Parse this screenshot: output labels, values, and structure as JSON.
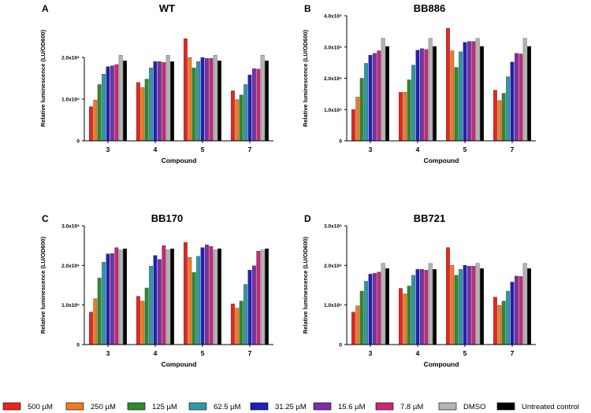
{
  "colors": {
    "500 µM": "#e8251f",
    "250 µM": "#f07a22",
    "125 µM": "#2f8a2f",
    "62.5 µM": "#2f9aa6",
    "31.25 µM": "#1f1fb8",
    "15.6 µM": "#7a2fa6",
    "7.8 µM": "#c8287a",
    "DMSO": "#b4b4b4",
    "Untreated control": "#000000"
  },
  "legend": [
    "500 µM",
    "250 µM",
    "125 µM",
    "62.5 µM",
    "31.25 µM",
    "15.6 µM",
    "7.8 µM",
    "DMSO",
    "Untreated control"
  ],
  "chart_data": [
    {
      "type": "bar",
      "panel": "A",
      "title": "WT",
      "xlabel": "Compound",
      "ylabel": "Relative luminescence (LU/OD600)",
      "ylim": [
        0,
        3000000
      ],
      "yticks": [
        0,
        1000000,
        2000000
      ],
      "ytick_labels": [
        "0",
        "1.0x10⁶",
        "2.0x10⁶"
      ],
      "categories": [
        "3",
        "4",
        "5",
        "7"
      ],
      "series": [
        {
          "name": "500 µM",
          "values": [
            820000,
            1400000,
            2450000,
            1200000
          ]
        },
        {
          "name": "250 µM",
          "values": [
            980000,
            1280000,
            2000000,
            990000
          ]
        },
        {
          "name": "125 µM",
          "values": [
            1350000,
            1480000,
            1750000,
            1100000
          ]
        },
        {
          "name": "62.5 µM",
          "values": [
            1600000,
            1750000,
            1900000,
            1350000
          ]
        },
        {
          "name": "31.25 µM",
          "values": [
            1780000,
            1900000,
            2000000,
            1580000
          ]
        },
        {
          "name": "15.6 µM",
          "values": [
            1800000,
            1900000,
            1980000,
            1730000
          ]
        },
        {
          "name": "7.8 µM",
          "values": [
            1830000,
            1880000,
            1980000,
            1720000
          ]
        },
        {
          "name": "DMSO",
          "values": [
            2050000,
            2050000,
            2050000,
            2050000
          ]
        },
        {
          "name": "Untreated control",
          "values": [
            1920000,
            1900000,
            1920000,
            1920000
          ]
        }
      ]
    },
    {
      "type": "bar",
      "panel": "B",
      "title": "BB886",
      "xlabel": "Compound",
      "ylabel": "Relative luminescence (LU/OD600)",
      "ylim": [
        0,
        4000000
      ],
      "yticks": [
        0,
        1000000,
        2000000,
        3000000,
        4000000
      ],
      "ytick_labels": [
        "0",
        "1.0x10⁶",
        "2.0x10⁶",
        "3.0x10⁶",
        "4.0x10⁶"
      ],
      "categories": [
        "3",
        "4",
        "5",
        "7"
      ],
      "series": [
        {
          "name": "500 µM",
          "values": [
            1000000,
            1550000,
            3600000,
            1620000
          ]
        },
        {
          "name": "250 µM",
          "values": [
            1400000,
            1560000,
            2880000,
            1290000
          ]
        },
        {
          "name": "125 µM",
          "values": [
            2000000,
            1950000,
            2350000,
            1520000
          ]
        },
        {
          "name": "62.5 µM",
          "values": [
            2480000,
            2420000,
            2850000,
            2050000
          ]
        },
        {
          "name": "31.25 µM",
          "values": [
            2740000,
            2900000,
            3150000,
            2520000
          ]
        },
        {
          "name": "15.6 µM",
          "values": [
            2800000,
            2950000,
            3180000,
            2800000
          ]
        },
        {
          "name": "7.8 µM",
          "values": [
            2880000,
            2920000,
            3180000,
            2780000
          ]
        },
        {
          "name": "DMSO",
          "values": [
            3280000,
            3280000,
            3280000,
            3280000
          ]
        },
        {
          "name": "Untreated control",
          "values": [
            3020000,
            3020000,
            3020000,
            3020000
          ]
        }
      ]
    },
    {
      "type": "bar",
      "panel": "C",
      "title": "BB170",
      "xlabel": "Compound",
      "ylabel": "Relative luminescence (LU/OD600)",
      "ylim": [
        0,
        3000000
      ],
      "yticks": [
        0,
        1000000,
        2000000,
        3000000
      ],
      "ytick_labels": [
        "0",
        "1.0x10⁶",
        "2.0x10⁶",
        "3.0x10⁶"
      ],
      "categories": [
        "3",
        "4",
        "5",
        "7"
      ],
      "series": [
        {
          "name": "500 µM",
          "values": [
            820000,
            1220000,
            2580000,
            1030000
          ]
        },
        {
          "name": "250 µM",
          "values": [
            1160000,
            1100000,
            2200000,
            920000
          ]
        },
        {
          "name": "125 µM",
          "values": [
            1680000,
            1430000,
            1820000,
            1100000
          ]
        },
        {
          "name": "62.5 µM",
          "values": [
            2080000,
            1980000,
            2230000,
            1520000
          ]
        },
        {
          "name": "31.25 µM",
          "values": [
            2290000,
            2250000,
            2450000,
            1880000
          ]
        },
        {
          "name": "15.6 µM",
          "values": [
            2300000,
            2150000,
            2520000,
            1990000
          ]
        },
        {
          "name": "7.8 µM",
          "values": [
            2450000,
            2500000,
            2480000,
            2360000
          ]
        },
        {
          "name": "DMSO",
          "values": [
            2390000,
            2390000,
            2390000,
            2390000
          ]
        },
        {
          "name": "Untreated control",
          "values": [
            2420000,
            2420000,
            2420000,
            2420000
          ]
        }
      ]
    },
    {
      "type": "bar",
      "panel": "D",
      "title": "BB721",
      "xlabel": "Compound",
      "ylabel": "Relative luminescence (LU/OD600)",
      "ylim": [
        0,
        3000000
      ],
      "yticks": [
        0,
        1000000,
        2000000,
        3000000
      ],
      "ytick_labels": [
        "0",
        "1.0x10⁶",
        "2.0x10⁶",
        "3.0x10⁶"
      ],
      "categories": [
        "3",
        "4",
        "5",
        "7"
      ],
      "series": [
        {
          "name": "500 µM",
          "values": [
            820000,
            1420000,
            2450000,
            1200000
          ]
        },
        {
          "name": "250 µM",
          "values": [
            980000,
            1280000,
            2000000,
            990000
          ]
        },
        {
          "name": "125 µM",
          "values": [
            1350000,
            1480000,
            1750000,
            1100000
          ]
        },
        {
          "name": "62.5 µM",
          "values": [
            1600000,
            1750000,
            1900000,
            1350000
          ]
        },
        {
          "name": "31.25 µM",
          "values": [
            1780000,
            1900000,
            2000000,
            1580000
          ]
        },
        {
          "name": "15.6 µM",
          "values": [
            1800000,
            1900000,
            1980000,
            1730000
          ]
        },
        {
          "name": "7.8 µM",
          "values": [
            1830000,
            1880000,
            1980000,
            1720000
          ]
        },
        {
          "name": "DMSO",
          "values": [
            2050000,
            2050000,
            2050000,
            2050000
          ]
        },
        {
          "name": "Untreated control",
          "values": [
            1920000,
            1900000,
            1920000,
            1920000
          ]
        }
      ]
    }
  ]
}
